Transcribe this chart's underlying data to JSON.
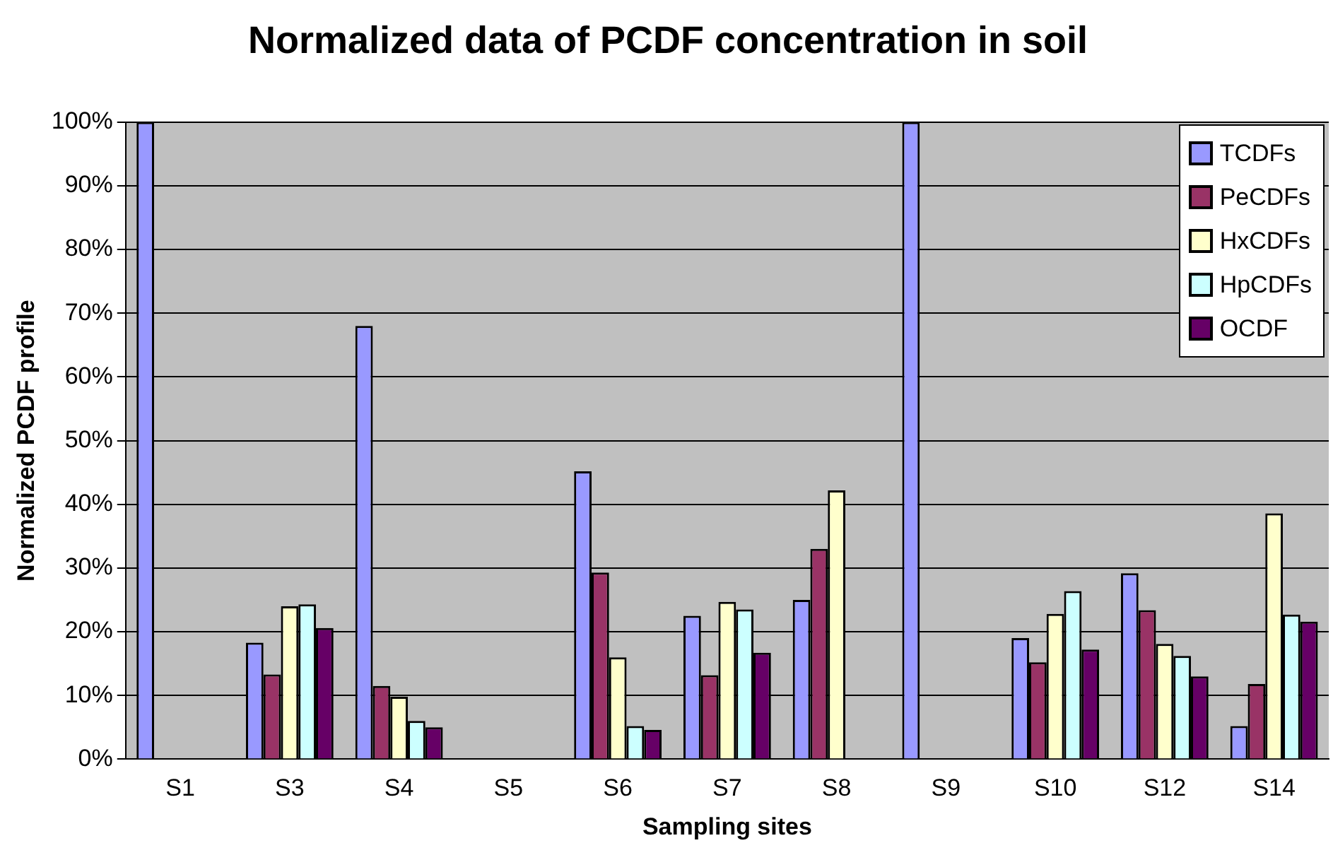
{
  "chart_data": {
    "type": "bar",
    "title": "Normalized data of PCDF concentration in soil",
    "xlabel": "Sampling sites",
    "ylabel": "Normalized PCDF profile",
    "categories": [
      "S1",
      "S3",
      "S4",
      "S5",
      "S6",
      "S7",
      "S8",
      "S9",
      "S10",
      "S12",
      "S14"
    ],
    "series": [
      {
        "name": "TCDFs",
        "color": "#9999ff",
        "values": [
          100,
          18.3,
          68,
          null,
          45.2,
          22.5,
          25,
          100,
          19,
          29.2,
          5.2
        ]
      },
      {
        "name": "PeCDFs",
        "color": "#993366",
        "values": [
          null,
          13.3,
          11.5,
          null,
          29.3,
          13.2,
          33,
          null,
          15.2,
          23.4,
          11.8
        ]
      },
      {
        "name": "HxCDFs",
        "color": "#ffffcc",
        "values": [
          null,
          24,
          9.8,
          null,
          16,
          24.7,
          42.2,
          null,
          22.8,
          18.1,
          38.6
        ]
      },
      {
        "name": "HpCDFs",
        "color": "#ccffff",
        "values": [
          null,
          24.3,
          6,
          null,
          5.2,
          23.5,
          null,
          null,
          26.4,
          16.2,
          22.7
        ]
      },
      {
        "name": "OCDF",
        "color": "#660066",
        "values": [
          null,
          20.6,
          5,
          null,
          4.6,
          16.7,
          null,
          null,
          17.2,
          13,
          21.6
        ]
      }
    ],
    "ylim": [
      0,
      100
    ],
    "yticks": [
      {
        "value": 0,
        "label": "0%"
      },
      {
        "value": 10,
        "label": "10%"
      },
      {
        "value": 20,
        "label": "20%"
      },
      {
        "value": 30,
        "label": "30%"
      },
      {
        "value": 40,
        "label": "40%"
      },
      {
        "value": 50,
        "label": "50%"
      },
      {
        "value": 60,
        "label": "60%"
      },
      {
        "value": 70,
        "label": "70%"
      },
      {
        "value": 80,
        "label": "80%"
      },
      {
        "value": 90,
        "label": "90%"
      },
      {
        "value": 100,
        "label": "100%"
      }
    ],
    "grid": "y",
    "legend": "top right"
  }
}
